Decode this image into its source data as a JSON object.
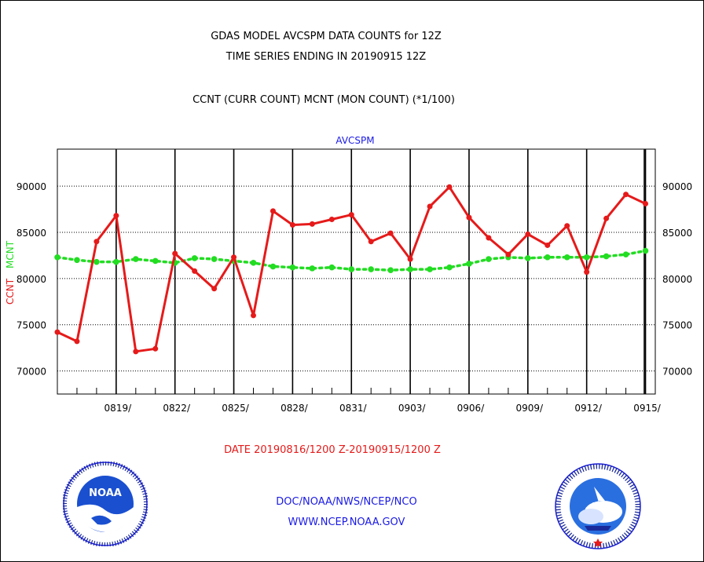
{
  "header": {
    "title_line1": "GDAS MODEL AVCSPM DATA COUNTS for 12Z",
    "title_line2": "TIME SERIES ENDING IN 20190915 12Z",
    "subtitle": "CCNT (CURR COUNT) MCNT (MON COUNT) (*1/100)"
  },
  "footer": {
    "date_range": "DATE 20190816/1200 Z-20190915/1200 Z",
    "org": "DOC/NOAA/NWS/NCEP/NCO",
    "url": "WWW.NCEP.NOAA.GOV"
  },
  "logos": {
    "left": "noaa-logo",
    "right": "national-weather-service-logo",
    "noaa_text": "NOAA"
  },
  "colors": {
    "ccnt": "#e61a1a",
    "mcnt": "#22dd22",
    "text_blue": "#1a1ae6"
  },
  "chart_data": {
    "type": "line",
    "title": "AVCSPM",
    "ylabel_ccnt": "CCNT",
    "ylabel_mcnt": "MCNT",
    "x": [
      "0816",
      "0817",
      "0818",
      "0819",
      "0820",
      "0821",
      "0822",
      "0823",
      "0824",
      "0825",
      "0826",
      "0827",
      "0828",
      "0829",
      "0830",
      "0831",
      "0901",
      "0902",
      "0903",
      "0904",
      "0905",
      "0906",
      "0907",
      "0908",
      "0909",
      "0910",
      "0911",
      "0912",
      "0913",
      "0914",
      "0915"
    ],
    "x_tick_labels": [
      "0819/",
      "0822/",
      "0825/",
      "0828/",
      "0831/",
      "0903/",
      "0906/",
      "0909/",
      "0912/",
      "0915/"
    ],
    "x_tick_dates": [
      "0819",
      "0822",
      "0825",
      "0828",
      "0831",
      "0903",
      "0906",
      "0909",
      "0912",
      "0915"
    ],
    "y_ticks": [
      70000,
      75000,
      80000,
      85000,
      90000
    ],
    "y_tick_labels": [
      "70000",
      "75000",
      "80000",
      "85000",
      "90000"
    ],
    "ylim": [
      67500,
      94000
    ],
    "grid": true,
    "series": [
      {
        "name": "CCNT",
        "values": [
          74200,
          73200,
          84000,
          86800,
          72100,
          72400,
          82700,
          80800,
          78900,
          82300,
          76000,
          87300,
          85800,
          85900,
          86400,
          86900,
          84000,
          84900,
          82100,
          87800,
          89900,
          86600,
          84400,
          82600,
          84800,
          83600,
          85700,
          80700,
          86500,
          89100,
          88100
        ]
      },
      {
        "name": "MCNT",
        "values": [
          82300,
          82000,
          81800,
          81800,
          82100,
          81900,
          81700,
          82200,
          82100,
          81900,
          81700,
          81300,
          81200,
          81100,
          81200,
          81000,
          81000,
          80900,
          81000,
          81000,
          81200,
          81600,
          82100,
          82300,
          82200,
          82300,
          82300,
          82300,
          82400,
          82600,
          83000
        ]
      }
    ]
  }
}
